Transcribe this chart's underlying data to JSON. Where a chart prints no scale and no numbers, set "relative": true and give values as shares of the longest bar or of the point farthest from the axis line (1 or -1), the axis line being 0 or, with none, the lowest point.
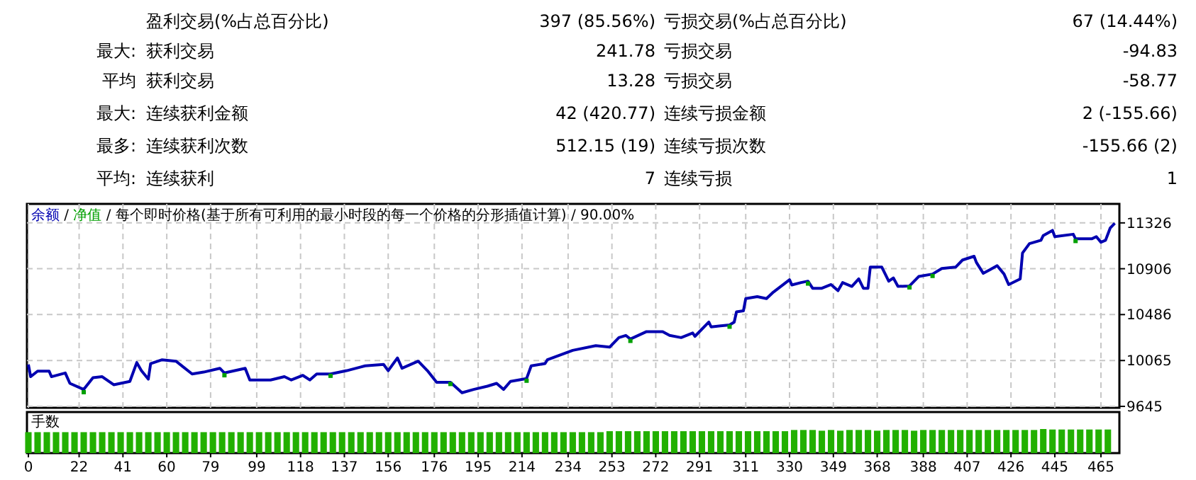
{
  "chart_data": [
    {
      "type": "other",
      "annotations": [
        "盈利交易(%占总百分比)",
        "397 (85.56%)",
        "亏损交易(%占总百分比)",
        "67 (14.44%)",
        "最大:",
        "获利交易",
        "241.78",
        "亏损交易",
        "-94.83",
        "平均",
        "获利交易",
        "13.28",
        "亏损交易",
        "-58.77",
        "最大:",
        "连续获利金额",
        "42 (420.77)",
        "连续亏损金额",
        "2 (-155.66)",
        "最多:",
        "连续获利次数",
        "512.15 (19)",
        "连续亏损次数",
        "-155.66 (2)",
        "平均:",
        "连续获利",
        "7",
        "连续亏损",
        "1"
      ]
    },
    {
      "type": "line",
      "title": "/ 每个即时价格(基于所有可利用的最小时段的每一个价格的分形插值计算) / 90.00%",
      "xlim": [
        0,
        473
      ],
      "ylim": [
        9645,
        11500
      ],
      "xticks": [
        0,
        22,
        41,
        60,
        79,
        99,
        118,
        137,
        156,
        176,
        195,
        214,
        234,
        253,
        272,
        291,
        311,
        330,
        349,
        368,
        388,
        407,
        426,
        445,
        465
      ],
      "yticks": [
        9645,
        10065,
        10486,
        10906,
        11326
      ],
      "tick_labels": "y",
      "grid": true,
      "legend": "top left",
      "line_style": "solid",
      "series": [
        {
          "name": "余额",
          "color": "#0000b0",
          "x": [
            0,
            1,
            4,
            9,
            10,
            16,
            18,
            24,
            28,
            32,
            37,
            44,
            47,
            49,
            52,
            53,
            58,
            64,
            71,
            76,
            83,
            85,
            94,
            96,
            105,
            111,
            114,
            119,
            122,
            125,
            131,
            138,
            146,
            154,
            156,
            160,
            162,
            169,
            173,
            177,
            183,
            188,
            193,
            199,
            203,
            206,
            209,
            216,
            218,
            224,
            225,
            236,
            246,
            252,
            256,
            259,
            261,
            268,
            275,
            278,
            283,
            288,
            289,
            295,
            296,
            304,
            306,
            307,
            310,
            311,
            316,
            320,
            323,
            330,
            331,
            335,
            338,
            340,
            344,
            348,
            351,
            353,
            357,
            360,
            362,
            364,
            365,
            370,
            373,
            375,
            377,
            382,
            386,
            392,
            396,
            402,
            405,
            410,
            411,
            414,
            417,
            420,
            423,
            425,
            430,
            431,
            434,
            439,
            440,
            444,
            445,
            453,
            454,
            461,
            463,
            465,
            467,
            469,
            471
          ],
          "values": [
            10029,
            9917,
            9968,
            9968,
            9917,
            9951,
            9856,
            9800,
            9907,
            9917,
            9843,
            9874,
            10046,
            9972,
            9895,
            10037,
            10072,
            10059,
            9942,
            9959,
            9994,
            9951,
            9994,
            9887,
            9887,
            9917,
            9887,
            9929,
            9887,
            9942,
            9942,
            9972,
            10016,
            10029,
            9972,
            10089,
            9994,
            10059,
            9972,
            9865,
            9865,
            9770,
            9800,
            9830,
            9856,
            9800,
            9874,
            9900,
            10016,
            10037,
            10072,
            10158,
            10201,
            10188,
            10275,
            10295,
            10262,
            10330,
            10330,
            10295,
            10275,
            10317,
            10287,
            10417,
            10373,
            10391,
            10417,
            10511,
            10520,
            10632,
            10650,
            10632,
            10692,
            10805,
            10757,
            10779,
            10792,
            10727,
            10727,
            10761,
            10705,
            10779,
            10744,
            10813,
            10727,
            10727,
            10921,
            10921,
            10792,
            10822,
            10744,
            10748,
            10835,
            10857,
            10908,
            10921,
            10986,
            11020,
            10964,
            10864,
            10899,
            10934,
            10857,
            10761,
            10813,
            11050,
            11136,
            11167,
            11210,
            11257,
            11200,
            11222,
            11180,
            11180,
            11200,
            11149,
            11167,
            11278,
            11322
          ]
        },
        {
          "name": "净值",
          "color": "#00a000",
          "type": "scatter",
          "marker": "square",
          "x": [
            24,
            85,
            131,
            183,
            216,
            261,
            304,
            338,
            382,
            392,
            454
          ],
          "values": [
            9775,
            9930,
            9925,
            9850,
            9880,
            10245,
            10375,
            10770,
            10735,
            10840,
            11160
          ]
        }
      ],
      "annotations": [
        "/"
      ]
    },
    {
      "type": "bar",
      "title": "手数",
      "relative": true,
      "color": "#22b000",
      "xlim": [
        0,
        473
      ],
      "xticks": [
        0,
        22,
        41,
        60,
        79,
        99,
        118,
        137,
        156,
        176,
        195,
        214,
        234,
        253,
        272,
        291,
        311,
        330,
        349,
        368,
        388,
        407,
        426,
        445,
        465
      ],
      "tick_labels": "x",
      "x": [
        0,
        4,
        8,
        12,
        16,
        20,
        24,
        28,
        32,
        36,
        40,
        44,
        48,
        52,
        56,
        60,
        64,
        68,
        72,
        76,
        80,
        84,
        88,
        92,
        96,
        100,
        104,
        108,
        112,
        116,
        120,
        124,
        128,
        132,
        136,
        140,
        144,
        148,
        152,
        156,
        160,
        164,
        168,
        172,
        176,
        180,
        184,
        188,
        192,
        196,
        200,
        204,
        208,
        212,
        216,
        220,
        224,
        228,
        232,
        236,
        240,
        244,
        248,
        252,
        256,
        260,
        264,
        268,
        272,
        276,
        280,
        284,
        288,
        292,
        296,
        300,
        304,
        308,
        312,
        316,
        320,
        324,
        328,
        332,
        336,
        340,
        344,
        348,
        352,
        356,
        360,
        364,
        368,
        372,
        376,
        380,
        384,
        388,
        392,
        396,
        400,
        404,
        408,
        412,
        416,
        420,
        424,
        428,
        432,
        436,
        440,
        444,
        448,
        452,
        456,
        460,
        464,
        468
      ],
      "values": [
        0.87,
        0.87,
        0.87,
        0.87,
        0.87,
        0.87,
        0.87,
        0.87,
        0.87,
        0.87,
        0.87,
        0.87,
        0.87,
        0.87,
        0.87,
        0.87,
        0.87,
        0.87,
        0.87,
        0.87,
        0.87,
        0.87,
        0.87,
        0.87,
        0.87,
        0.87,
        0.87,
        0.87,
        0.87,
        0.87,
        0.87,
        0.87,
        0.87,
        0.87,
        0.87,
        0.87,
        0.87,
        0.87,
        0.87,
        0.87,
        0.87,
        0.87,
        0.87,
        0.87,
        0.87,
        0.87,
        0.87,
        0.87,
        0.87,
        0.87,
        0.87,
        0.87,
        0.87,
        0.87,
        0.87,
        0.87,
        0.87,
        0.87,
        0.87,
        0.87,
        0.87,
        0.87,
        0.87,
        0.91,
        0.91,
        0.91,
        0.91,
        0.91,
        0.91,
        0.91,
        0.91,
        0.91,
        0.91,
        0.91,
        0.91,
        0.91,
        0.91,
        0.91,
        0.91,
        0.91,
        0.91,
        0.91,
        0.91,
        0.96,
        0.96,
        0.96,
        0.93,
        0.96,
        0.93,
        0.96,
        0.96,
        0.96,
        0.93,
        0.96,
        0.96,
        0.96,
        0.93,
        0.96,
        0.96,
        0.96,
        0.96,
        0.96,
        0.96,
        0.96,
        0.96,
        0.96,
        0.96,
        0.96,
        0.96,
        0.96,
        1,
        0.98,
        0.98,
        0.98,
        0.98,
        0.98,
        0.98,
        0.98
      ]
    }
  ]
}
